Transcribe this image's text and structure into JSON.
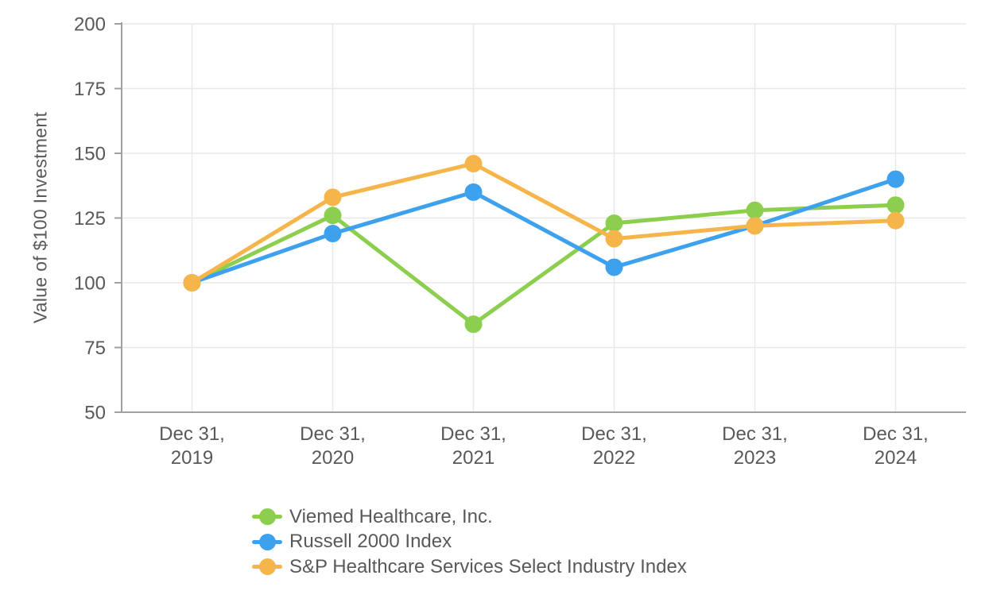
{
  "chart_data": {
    "type": "line",
    "title": "",
    "ylabel": "Value of $100 Investment",
    "xlabel": "",
    "x_labels": [
      [
        "Dec 31,",
        "2019"
      ],
      [
        "Dec 31,",
        "2020"
      ],
      [
        "Dec 31,",
        "2021"
      ],
      [
        "Dec 31,",
        "2022"
      ],
      [
        "Dec 31,",
        "2023"
      ],
      [
        "Dec 31,",
        "2024"
      ]
    ],
    "ylim": [
      50,
      200
    ],
    "yticks": [
      50,
      75,
      100,
      125,
      150,
      175,
      200
    ],
    "grid": true,
    "legend_position": "bottom-left",
    "series": [
      {
        "name": "Viemed Healthcare, Inc.",
        "color": "#8CCE4D",
        "values": [
          100,
          126,
          84,
          123,
          128,
          130
        ]
      },
      {
        "name": "Russell 2000 Index",
        "color": "#3EA1EE",
        "values": [
          100,
          119,
          135,
          106,
          122,
          140
        ]
      },
      {
        "name": "S&P Healthcare Services Select Industry Index",
        "color": "#F6B54B",
        "values": [
          100,
          133,
          146,
          117,
          122,
          124
        ]
      }
    ]
  },
  "style": {
    "background": "#ffffff",
    "grid_color": "#e8e8e8",
    "axis_color": "#a0a0a0",
    "text_color": "#595959",
    "line_width": 5,
    "marker_radius": 11
  }
}
